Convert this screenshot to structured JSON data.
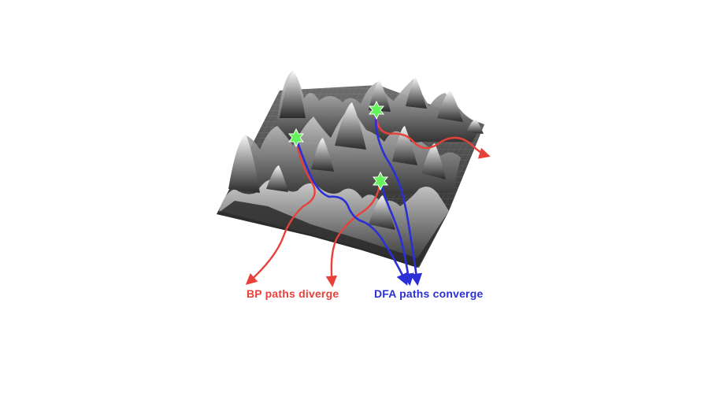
{
  "labels": {
    "bp": "BP paths diverge",
    "dfa": "DFA paths converge"
  },
  "colors": {
    "bp": "#e8413a",
    "dfa": "#2b2fd6",
    "start": "#63f25a",
    "surface_dark": "#1c1c1c",
    "surface_light": "#f2f2f2"
  }
}
